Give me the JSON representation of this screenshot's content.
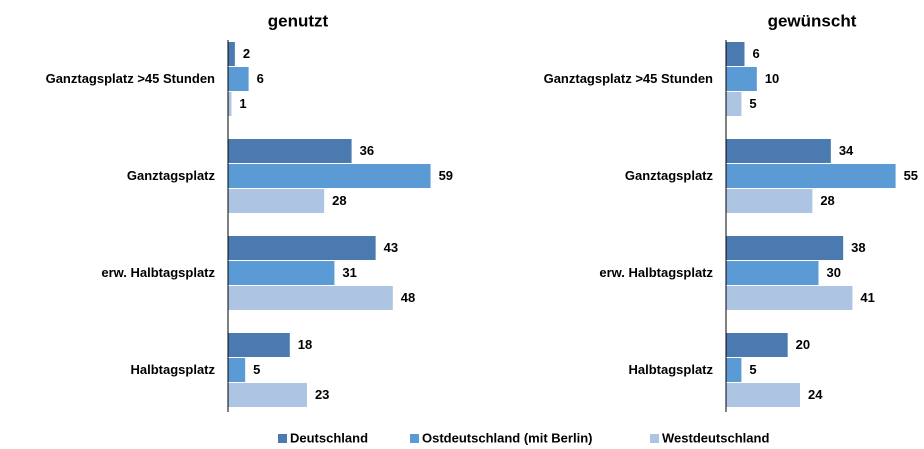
{
  "chart_data": [
    {
      "type": "barh",
      "title": "genutzt",
      "categories": [
        "Ganztagsplatz >45 Stunden",
        "Ganztagsplatz",
        "erw. Halbtagsplatz",
        "Halbtagsplatz"
      ],
      "series": [
        {
          "name": "Deutschland",
          "color": "#4a7ab0",
          "values": [
            2,
            36,
            43,
            18
          ]
        },
        {
          "name": "Ostdeutschland (mit Berlin)",
          "color": "#5b9bd5",
          "values": [
            6,
            59,
            31,
            5
          ]
        },
        {
          "name": "Westdeutschland",
          "color": "#adc4e3",
          "values": [
            1,
            28,
            48,
            23
          ]
        }
      ],
      "xlim": [
        0,
        60
      ],
      "legend": "bottom"
    },
    {
      "type": "barh",
      "title": "gewünscht",
      "categories": [
        "Ganztagsplatz >45 Stunden",
        "Ganztagsplatz",
        "erw. Halbtagsplatz",
        "Halbtagsplatz"
      ],
      "series": [
        {
          "color": "#4a7ab0",
          "values": [
            6,
            34,
            38,
            20
          ]
        },
        {
          "color": "#5b9bd5",
          "values": [
            10,
            55,
            30,
            5
          ]
        },
        {
          "color": "#adc4e3",
          "values": [
            5,
            28,
            41,
            24
          ]
        }
      ],
      "xlim": [
        0,
        60
      ]
    }
  ]
}
